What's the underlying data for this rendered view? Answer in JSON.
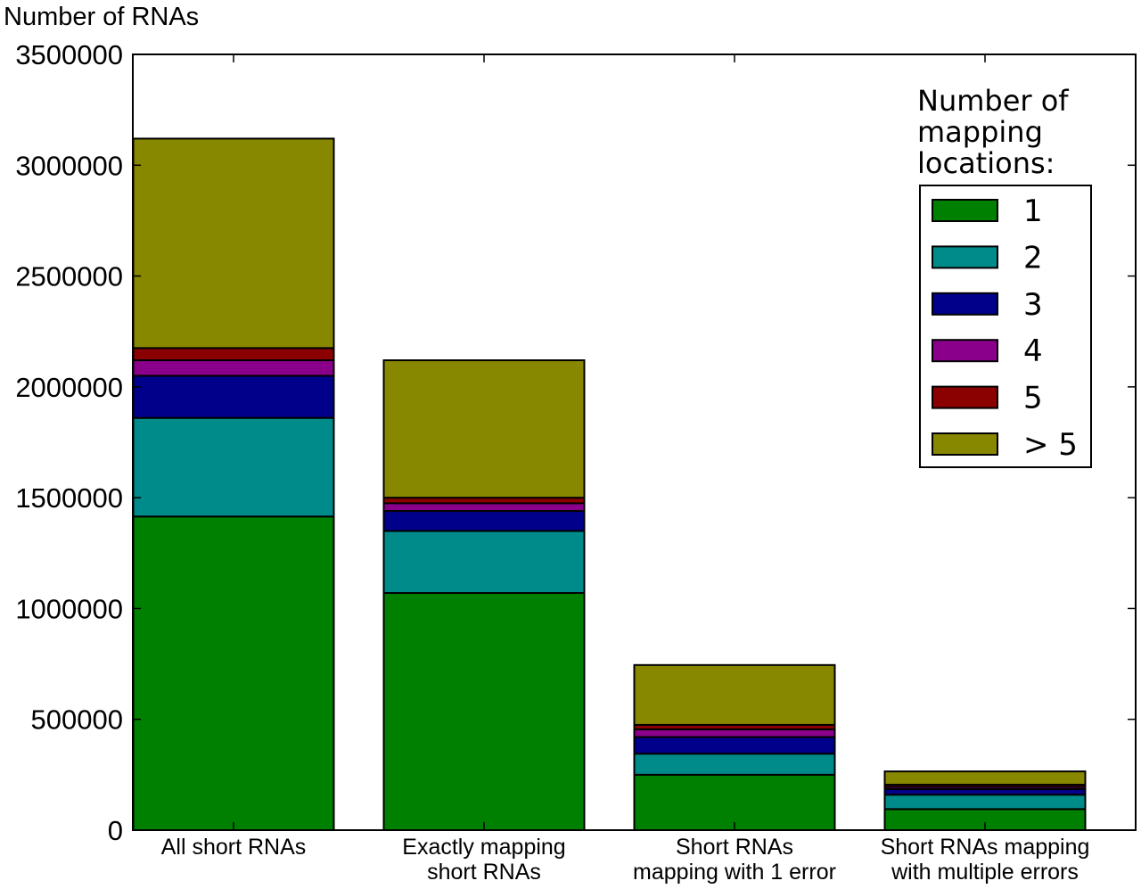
{
  "chart_data": {
    "type": "bar",
    "stacked": true,
    "ylabel": "Number of RNAs",
    "ylim": [
      0,
      3500000
    ],
    "yticks": [
      "0",
      "500000",
      "1000000",
      "1500000",
      "2000000",
      "2500000",
      "3000000",
      "3500000"
    ],
    "grid": false,
    "categories": [
      [
        "All short RNAs"
      ],
      [
        "Exactly mapping",
        "short RNAs"
      ],
      [
        "Short RNAs",
        "mapping with 1 error"
      ],
      [
        "Short RNAs mapping",
        "with multiple errors"
      ]
    ],
    "legend": {
      "title": [
        "Number of",
        "mapping",
        "locations:"
      ],
      "position": "top-right"
    },
    "series": [
      {
        "name": "1",
        "color": "#008000",
        "values": [
          1415000,
          1070000,
          250000,
          95000
        ]
      },
      {
        "name": "2",
        "color": "#008b8b",
        "values": [
          445000,
          280000,
          95000,
          65000
        ]
      },
      {
        "name": "3",
        "color": "#00008b",
        "values": [
          190000,
          90000,
          75000,
          25000
        ]
      },
      {
        "name": "4",
        "color": "#8b008b",
        "values": [
          70000,
          35000,
          35000,
          10000
        ]
      },
      {
        "name": "5",
        "color": "#8b0000",
        "values": [
          55000,
          25000,
          20000,
          10000
        ]
      },
      {
        "name": "> 5",
        "color": "#888800",
        "values": [
          945000,
          620000,
          270000,
          60000
        ]
      }
    ]
  }
}
